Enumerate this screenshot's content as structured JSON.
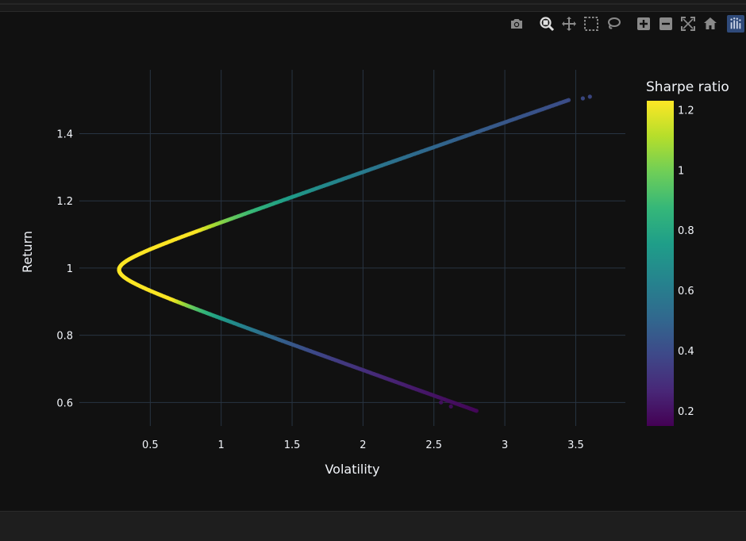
{
  "toolbar": {
    "buttons": [
      {
        "name": "camera-icon",
        "label": "Download plot as a png"
      },
      {
        "name": "zoom-icon",
        "label": "Zoom",
        "active": true
      },
      {
        "name": "pan-icon",
        "label": "Pan"
      },
      {
        "name": "box-select-icon",
        "label": "Box Select"
      },
      {
        "name": "lasso-select-icon",
        "label": "Lasso Select"
      },
      {
        "name": "zoom-in-icon",
        "label": "Zoom in"
      },
      {
        "name": "zoom-out-icon",
        "label": "Zoom out"
      },
      {
        "name": "autoscale-icon",
        "label": "Autoscale"
      },
      {
        "name": "home-icon",
        "label": "Reset axes"
      },
      {
        "name": "plotly-logo-icon",
        "label": "Produced with Plotly"
      }
    ],
    "icon_color": "#8a8a8a",
    "active_icon_color": "#e0e0e0"
  },
  "chart_data": {
    "type": "scatter",
    "title": "",
    "xlabel": "Volatility",
    "ylabel": "Return",
    "xlim": [
      0.0,
      3.85
    ],
    "ylim": [
      0.53,
      1.59
    ],
    "xticks": [
      0.5,
      1,
      1.5,
      2,
      2.5,
      3,
      3.5
    ],
    "xtick_labels": [
      "0.5",
      "1",
      "1.5",
      "2",
      "2.5",
      "3",
      "3.5"
    ],
    "yticks": [
      0.6,
      0.8,
      1.0,
      1.2,
      1.4
    ],
    "ytick_labels": [
      "0.6",
      "0.8",
      "1",
      "1.2",
      "1.4"
    ],
    "grid": true,
    "colorscale": "Viridis",
    "colorbar": {
      "title": "Sharpe ratio",
      "range": [
        0.15,
        1.23
      ],
      "ticks": [
        0.2,
        0.4,
        0.6,
        0.8,
        1.0,
        1.2
      ],
      "tick_labels": [
        "0.2",
        "0.4",
        "0.6",
        "0.8",
        "1",
        "1.2"
      ]
    },
    "frontier": {
      "min_volatility": 0.28,
      "min_vol_return": 0.995,
      "upper_points": [
        [
          0.5,
          1.115
        ],
        [
          1.0,
          1.228
        ],
        [
          1.5,
          1.298
        ],
        [
          2.0,
          1.355
        ],
        [
          2.5,
          1.41
        ],
        [
          3.0,
          1.455
        ],
        [
          3.45,
          1.5
        ]
      ],
      "lower_points": [
        [
          0.5,
          0.877
        ],
        [
          1.0,
          0.765
        ],
        [
          1.5,
          0.697
        ],
        [
          2.0,
          0.645
        ],
        [
          2.5,
          0.605
        ],
        [
          2.8,
          0.575
        ]
      ],
      "outlier_points": [
        [
          3.6,
          1.51
        ],
        [
          3.55,
          1.505
        ],
        [
          2.55,
          0.6
        ],
        [
          2.62,
          0.588
        ],
        [
          2.8,
          0.575
        ]
      ]
    }
  },
  "colors": {
    "background": "#111111",
    "grid": "#283442",
    "text": "#f2f5fa"
  }
}
